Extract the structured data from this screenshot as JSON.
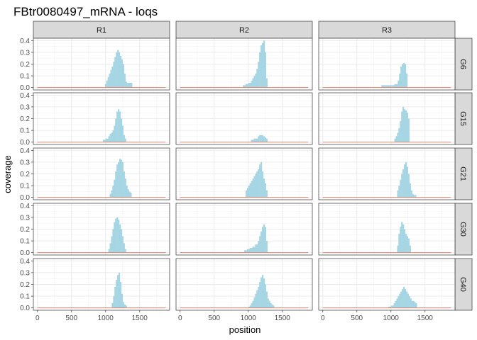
{
  "chart_data": {
    "type": "area",
    "title": "FBtr0080497_mRNA - loqs",
    "xlabel": "position",
    "ylabel": "coverage",
    "xlim": [
      -60,
      1940
    ],
    "ylim": [
      -0.02,
      0.42
    ],
    "x_ticks": [
      0,
      500,
      1000,
      1500
    ],
    "x_tick_labels": [
      "0",
      "500",
      "1000",
      "1500"
    ],
    "y_ticks": [
      0,
      0.1,
      0.2,
      0.3,
      0.4
    ],
    "y_tick_labels": [
      "0.0",
      "0.1",
      "0.2",
      "0.3",
      "0.4"
    ],
    "grid": true,
    "columns": [
      "R1",
      "R2",
      "R3"
    ],
    "rows": [
      "G6",
      "G15",
      "G21",
      "G30",
      "G40"
    ],
    "baseline": {
      "x": [
        0,
        1880
      ],
      "y": 0.0,
      "color": "#e8826e"
    },
    "fill_color": "#a6d5e3",
    "panels": [
      {
        "row": "G6",
        "col": "R1",
        "x": [
          990,
          1010,
          1030,
          1050,
          1070,
          1090,
          1110,
          1130,
          1150,
          1170,
          1190,
          1210,
          1230,
          1250,
          1270,
          1290,
          1310,
          1330,
          1350,
          1370,
          1390
        ],
        "y": [
          0.03,
          0.06,
          0.09,
          0.12,
          0.15,
          0.18,
          0.22,
          0.26,
          0.3,
          0.32,
          0.3,
          0.27,
          0.24,
          0.2,
          0.12,
          0.05,
          0.04,
          0.04,
          0.04,
          0.04,
          0.0
        ]
      },
      {
        "row": "G6",
        "col": "R2",
        "x": [
          920,
          960,
          1000,
          1040,
          1060,
          1080,
          1100,
          1120,
          1140,
          1160,
          1180,
          1200,
          1220,
          1240,
          1260,
          1280
        ],
        "y": [
          0.02,
          0.03,
          0.04,
          0.06,
          0.08,
          0.1,
          0.12,
          0.16,
          0.22,
          0.3,
          0.36,
          0.38,
          0.4,
          0.3,
          0.08,
          0.0
        ]
      },
      {
        "row": "G6",
        "col": "R3",
        "x": [
          860,
          900,
          950,
          1000,
          1050,
          1100,
          1120,
          1140,
          1160,
          1180,
          1200,
          1220,
          1240
        ],
        "y": [
          0.02,
          0.02,
          0.02,
          0.02,
          0.03,
          0.06,
          0.12,
          0.18,
          0.2,
          0.21,
          0.2,
          0.12,
          0.0
        ]
      },
      {
        "row": "G15",
        "col": "R1",
        "x": [
          960,
          1000,
          1040,
          1060,
          1080,
          1100,
          1120,
          1140,
          1160,
          1180,
          1200,
          1220,
          1240,
          1260,
          1280,
          1300
        ],
        "y": [
          0.02,
          0.03,
          0.05,
          0.07,
          0.08,
          0.1,
          0.14,
          0.2,
          0.26,
          0.28,
          0.26,
          0.2,
          0.14,
          0.06,
          0.03,
          0.0
        ]
      },
      {
        "row": "G15",
        "col": "R2",
        "x": [
          1040,
          1080,
          1120,
          1140,
          1160,
          1180,
          1200,
          1220,
          1240,
          1260,
          1280
        ],
        "y": [
          0.02,
          0.03,
          0.03,
          0.05,
          0.06,
          0.06,
          0.06,
          0.05,
          0.04,
          0.03,
          0.0
        ]
      },
      {
        "row": "G15",
        "col": "R3",
        "x": [
          1050,
          1070,
          1090,
          1110,
          1130,
          1150,
          1170,
          1190,
          1210,
          1230,
          1250,
          1270
        ],
        "y": [
          0.03,
          0.05,
          0.08,
          0.12,
          0.18,
          0.26,
          0.3,
          0.28,
          0.27,
          0.25,
          0.2,
          0.0
        ]
      },
      {
        "row": "G21",
        "col": "R1",
        "x": [
          1060,
          1080,
          1100,
          1120,
          1140,
          1160,
          1180,
          1200,
          1220,
          1240,
          1260,
          1280,
          1300,
          1320,
          1340,
          1360,
          1380
        ],
        "y": [
          0.03,
          0.06,
          0.1,
          0.15,
          0.22,
          0.28,
          0.3,
          0.33,
          0.32,
          0.3,
          0.22,
          0.16,
          0.1,
          0.07,
          0.05,
          0.04,
          0.0
        ]
      },
      {
        "row": "G21",
        "col": "R2",
        "x": [
          960,
          980,
          1000,
          1020,
          1040,
          1060,
          1080,
          1100,
          1120,
          1140,
          1160,
          1180,
          1200,
          1220,
          1240,
          1260,
          1280
        ],
        "y": [
          0.06,
          0.08,
          0.1,
          0.12,
          0.14,
          0.16,
          0.18,
          0.2,
          0.22,
          0.24,
          0.28,
          0.3,
          0.22,
          0.16,
          0.12,
          0.06,
          0.0
        ]
      },
      {
        "row": "G21",
        "col": "R3",
        "x": [
          1090,
          1110,
          1130,
          1150,
          1170,
          1190,
          1210,
          1230,
          1250,
          1270,
          1290,
          1310,
          1330,
          1350,
          1370
        ],
        "y": [
          0.06,
          0.1,
          0.15,
          0.2,
          0.24,
          0.28,
          0.3,
          0.26,
          0.2,
          0.12,
          0.06,
          0.03,
          0.02,
          0.02,
          0.0
        ]
      },
      {
        "row": "G30",
        "col": "R1",
        "x": [
          1040,
          1060,
          1080,
          1100,
          1120,
          1140,
          1160,
          1180,
          1200,
          1220,
          1240,
          1260,
          1280,
          1300
        ],
        "y": [
          0.03,
          0.08,
          0.14,
          0.2,
          0.26,
          0.29,
          0.3,
          0.28,
          0.24,
          0.2,
          0.14,
          0.08,
          0.03,
          0.0
        ]
      },
      {
        "row": "G30",
        "col": "R2",
        "x": [
          940,
          980,
          1020,
          1060,
          1100,
          1140,
          1160,
          1180,
          1200,
          1220,
          1240,
          1260,
          1280
        ],
        "y": [
          0.02,
          0.03,
          0.04,
          0.05,
          0.07,
          0.1,
          0.14,
          0.18,
          0.22,
          0.24,
          0.22,
          0.1,
          0.0
        ]
      },
      {
        "row": "G30",
        "col": "R3",
        "x": [
          1090,
          1110,
          1130,
          1150,
          1170,
          1190,
          1210,
          1230,
          1250,
          1270,
          1290
        ],
        "y": [
          0.06,
          0.16,
          0.22,
          0.26,
          0.24,
          0.2,
          0.16,
          0.14,
          0.12,
          0.06,
          0.0
        ]
      },
      {
        "row": "G40",
        "col": "R1",
        "x": [
          1090,
          1110,
          1130,
          1150,
          1170,
          1190,
          1210,
          1230,
          1250,
          1270,
          1290,
          1310
        ],
        "y": [
          0.04,
          0.1,
          0.18,
          0.24,
          0.28,
          0.3,
          0.22,
          0.12,
          0.05,
          0.03,
          0.02,
          0.0
        ]
      },
      {
        "row": "G40",
        "col": "R2",
        "x": [
          1000,
          1020,
          1040,
          1060,
          1080,
          1100,
          1120,
          1140,
          1160,
          1180,
          1200,
          1220,
          1240,
          1260,
          1280,
          1300,
          1320,
          1340,
          1360,
          1380
        ],
        "y": [
          0.01,
          0.02,
          0.04,
          0.06,
          0.09,
          0.12,
          0.15,
          0.18,
          0.22,
          0.26,
          0.28,
          0.25,
          0.2,
          0.14,
          0.08,
          0.06,
          0.04,
          0.03,
          0.02,
          0.0
        ]
      },
      {
        "row": "G40",
        "col": "R3",
        "x": [
          960,
          1000,
          1040,
          1060,
          1080,
          1100,
          1120,
          1140,
          1160,
          1180,
          1200,
          1220,
          1240,
          1260,
          1280,
          1300,
          1320,
          1340,
          1360,
          1380
        ],
        "y": [
          0.01,
          0.02,
          0.04,
          0.06,
          0.08,
          0.1,
          0.12,
          0.14,
          0.16,
          0.18,
          0.16,
          0.14,
          0.12,
          0.1,
          0.08,
          0.06,
          0.06,
          0.05,
          0.04,
          0.0
        ]
      }
    ]
  }
}
